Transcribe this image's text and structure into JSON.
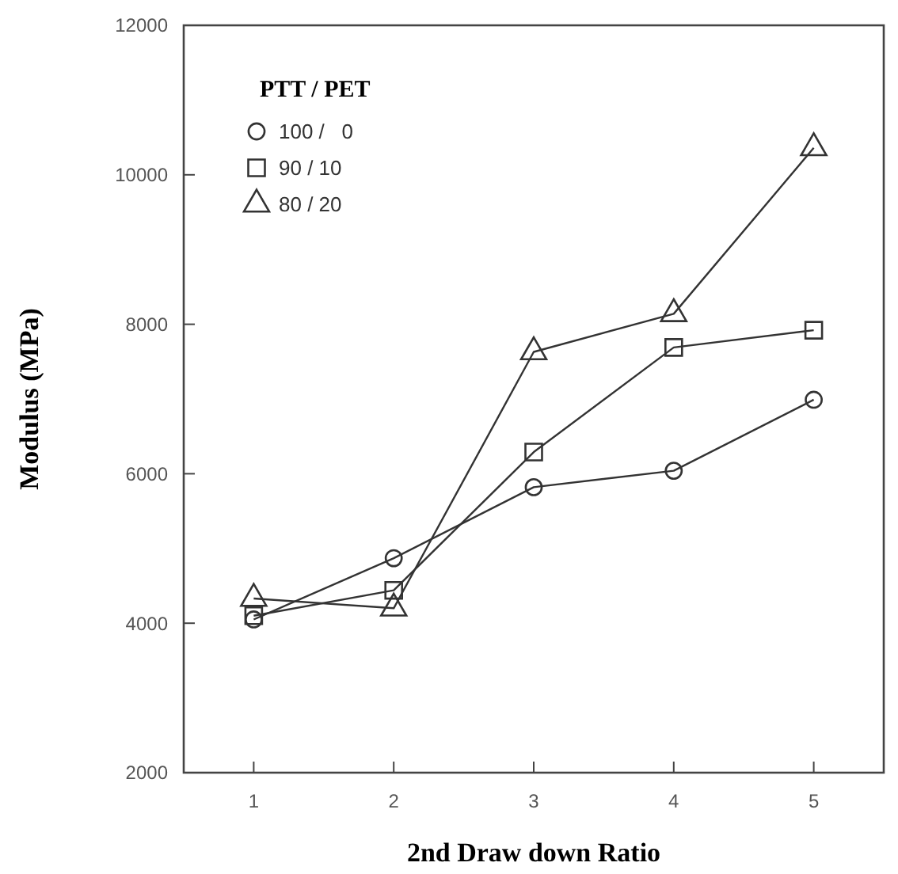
{
  "chart_data": {
    "type": "line",
    "xlabel": "2nd Draw down Ratio",
    "ylabel": "Modulus (MPa)",
    "legend_title": "PTT / PET",
    "legend": "top left",
    "x": [
      1,
      2,
      3,
      4,
      5
    ],
    "xlim": [
      0.5,
      5.5
    ],
    "xticks": [
      1,
      2,
      3,
      4,
      5
    ],
    "ylim": [
      2000,
      12000
    ],
    "yticks": [
      2000,
      4000,
      6000,
      8000,
      10000,
      12000
    ],
    "grid": false,
    "line_style": "solid",
    "series": [
      {
        "name": "100 /   0",
        "color": "#333333",
        "marker": "circle",
        "values": [
          4050,
          4870,
          5820,
          6040,
          6990
        ]
      },
      {
        "name": "90 / 10",
        "color": "#333333",
        "marker": "square",
        "values": [
          4100,
          4440,
          6290,
          7690,
          7920
        ]
      },
      {
        "name": "80 / 20",
        "color": "#333333",
        "marker": "triangle",
        "values": [
          4330,
          4200,
          7630,
          8140,
          10360
        ]
      }
    ]
  }
}
